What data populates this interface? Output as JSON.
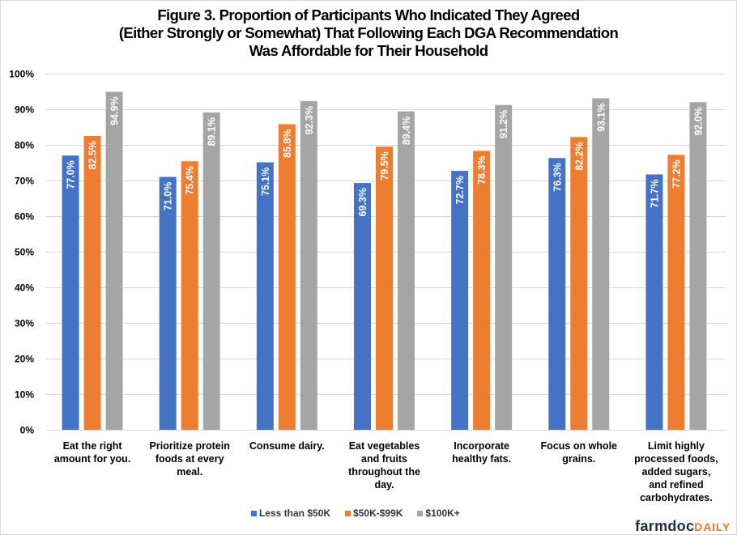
{
  "chart_data": {
    "type": "bar",
    "title": "Figure 3. Proportion of Participants Who Indicated They Agreed (Either Strongly or Somewhat) That Following Each DGA Recommendation Was Affordable for Their Household",
    "title_lines": [
      "Figure 3. Proportion of Participants Who Indicated They Agreed",
      "(Either Strongly or Somewhat) That Following Each DGA Recommendation",
      "Was Affordable for Their Household"
    ],
    "xlabel": "",
    "ylabel": "",
    "ylim": [
      0,
      100
    ],
    "yticks": [
      0,
      10,
      20,
      30,
      40,
      50,
      60,
      70,
      80,
      90,
      100
    ],
    "ytick_labels": [
      "0%",
      "10%",
      "20%",
      "30%",
      "40%",
      "50%",
      "60%",
      "70%",
      "80%",
      "90%",
      "100%"
    ],
    "grid": true,
    "legend_position": "bottom",
    "categories": [
      "Eat the right amount for you.",
      "Prioritize protein foods at every meal.",
      "Consume dairy.",
      "Eat vegetables and fruits throughout the day.",
      "Incorporate healthy fats.",
      "Focus on whole grains.",
      "Limit highly processed foods, added sugars, and refined carbohydrates."
    ],
    "category_lines": [
      [
        "Eat the right",
        "amount for you."
      ],
      [
        "Prioritize protein",
        "foods at every",
        "meal."
      ],
      [
        "Consume dairy."
      ],
      [
        "Eat vegetables",
        "and fruits",
        "throughout the",
        "day."
      ],
      [
        "Incorporate",
        "healthy fats."
      ],
      [
        "Focus on whole",
        "grains."
      ],
      [
        "Limit highly",
        "processed foods,",
        "added sugars,",
        "and refined",
        "carbohydrates."
      ]
    ],
    "series": [
      {
        "name": "Less than $50K",
        "color": "#4472c4",
        "values": [
          77.0,
          71.0,
          75.1,
          69.3,
          72.7,
          76.3,
          71.7
        ]
      },
      {
        "name": "$50K-$99K",
        "color": "#ed7d31",
        "values": [
          82.5,
          75.4,
          85.8,
          79.5,
          78.3,
          82.2,
          77.2
        ]
      },
      {
        "name": "$100K+",
        "color": "#a5a5a5",
        "values": [
          94.9,
          89.1,
          92.3,
          89.4,
          91.2,
          93.1,
          92.0
        ]
      }
    ],
    "data_label_format": "0.0%"
  },
  "branding": {
    "logo_main": "farmdoc",
    "logo_accent": "DAILY"
  }
}
